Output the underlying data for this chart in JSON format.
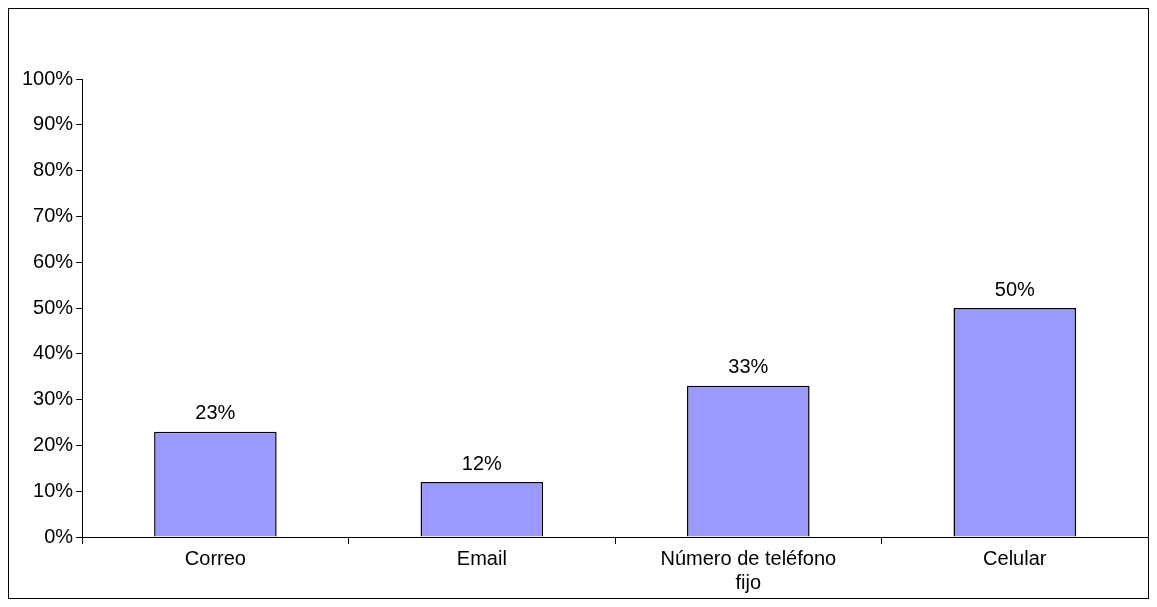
{
  "chart_data": {
    "type": "bar",
    "categories": [
      "Correo",
      "Email",
      "Número de teléfono fijo",
      "Celular"
    ],
    "values": [
      23,
      12,
      33,
      50
    ],
    "color": "#9999ff",
    "value_labels": [
      "23%",
      "12%",
      "33%",
      "50%"
    ],
    "ylim": [
      0,
      100
    ],
    "yticks": [
      {
        "value": 0,
        "label": "0%"
      },
      {
        "value": 10,
        "label": "10%"
      },
      {
        "value": 20,
        "label": "20%"
      },
      {
        "value": 30,
        "label": "30%"
      },
      {
        "value": 40,
        "label": "40%"
      },
      {
        "value": 50,
        "label": "50%"
      },
      {
        "value": 60,
        "label": "60%"
      },
      {
        "value": 70,
        "label": "70%"
      },
      {
        "value": 80,
        "label": "80%"
      },
      {
        "value": 90,
        "label": "90%"
      },
      {
        "value": 100,
        "label": "100%"
      }
    ],
    "grid": false,
    "legend": false
  }
}
